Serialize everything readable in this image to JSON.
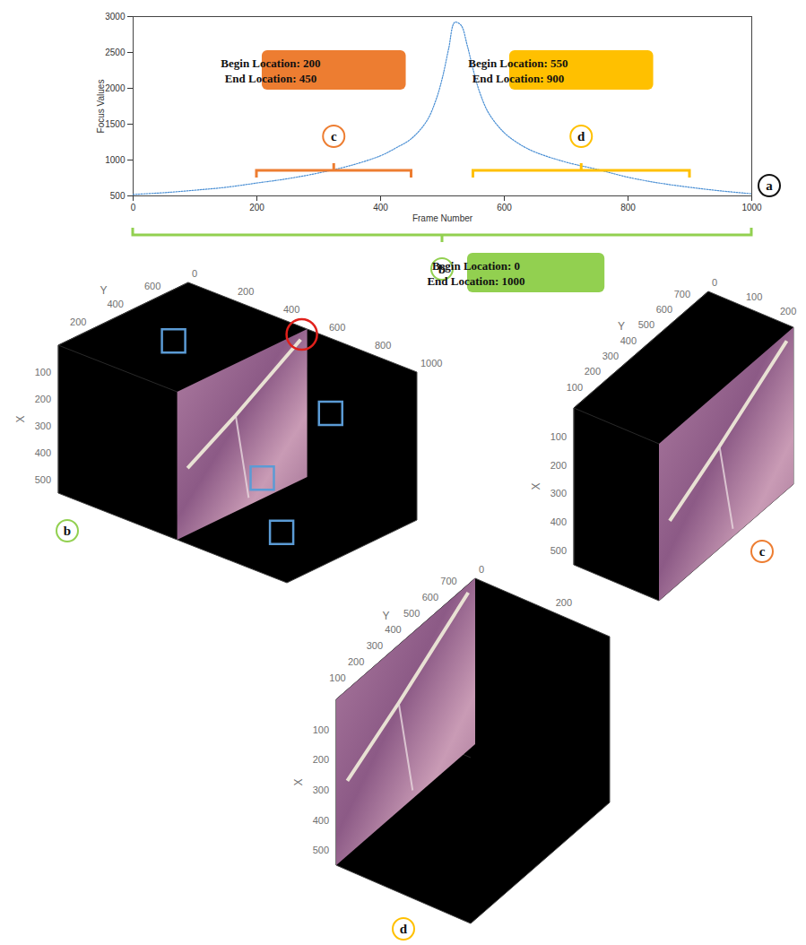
{
  "chart_data": {
    "type": "line",
    "panel": "a",
    "x_label": "Frame Number",
    "y_label": "Focus Values",
    "x": [
      0,
      50,
      100,
      150,
      200,
      250,
      300,
      350,
      400,
      425,
      450,
      475,
      490,
      500,
      510,
      520,
      530,
      540,
      550,
      560,
      575,
      600,
      625,
      650,
      700,
      750,
      800,
      850,
      900,
      950,
      1000
    ],
    "values": [
      520,
      545,
      580,
      620,
      680,
      740,
      820,
      920,
      1060,
      1170,
      1300,
      1550,
      1850,
      2150,
      2550,
      2920,
      2880,
      2600,
      2250,
      1950,
      1650,
      1380,
      1220,
      1110,
      970,
      870,
      760,
      680,
      620,
      570,
      530
    ],
    "color": "#4a8fd4",
    "line_style": "dotted",
    "xlim": [
      0,
      1000
    ],
    "ylim": [
      500,
      3000
    ],
    "xticks": [
      0,
      200,
      400,
      600,
      800,
      1000
    ],
    "yticks": [
      500,
      1000,
      1500,
      2000,
      2500,
      3000
    ],
    "annotations": [
      {
        "letter": "c",
        "begin": 200,
        "end": 450,
        "text": [
          "Begin Location: 200",
          "End Location: 450"
        ],
        "color": "#ed7d31"
      },
      {
        "letter": "d",
        "begin": 550,
        "end": 900,
        "text": [
          "Begin Location: 550",
          "End Location: 900"
        ],
        "color": "#ffc000"
      },
      {
        "letter": "b",
        "begin": 0,
        "end": 1000,
        "text": [
          "Begin Location: 0",
          "End Location: 1000"
        ],
        "color": "#92d050"
      }
    ]
  },
  "volumes": [
    {
      "panel": "b",
      "frame_lim": [
        0,
        1000
      ],
      "frame_ticks": [
        0,
        200,
        400,
        600,
        800,
        1000
      ],
      "y_label": "Y",
      "y_lim": [
        0,
        700
      ],
      "y_ticks": [
        200,
        400,
        600
      ],
      "x_label": "X",
      "x_lim": [
        0,
        550
      ],
      "x_ticks": [
        100,
        200,
        300,
        400,
        500
      ]
    },
    {
      "panel": "c",
      "frame_lim": [
        0,
        250
      ],
      "frame_ticks": [
        0,
        100,
        200
      ],
      "y_label": "Y",
      "y_lim": [
        0,
        750
      ],
      "y_ticks": [
        100,
        200,
        300,
        400,
        500,
        600,
        700
      ],
      "x_label": "X",
      "x_lim": [
        0,
        550
      ],
      "x_ticks": [
        100,
        200,
        300,
        400,
        500
      ]
    },
    {
      "panel": "d",
      "frame_lim": [
        0,
        350
      ],
      "frame_ticks": [
        0,
        200
      ],
      "y_label": "Y",
      "y_lim": [
        0,
        750
      ],
      "y_ticks": [
        100,
        200,
        300,
        400,
        500,
        600,
        700
      ],
      "x_label": "X",
      "x_lim": [
        0,
        550
      ],
      "x_ticks": [
        100,
        200,
        300,
        400,
        500
      ]
    }
  ]
}
